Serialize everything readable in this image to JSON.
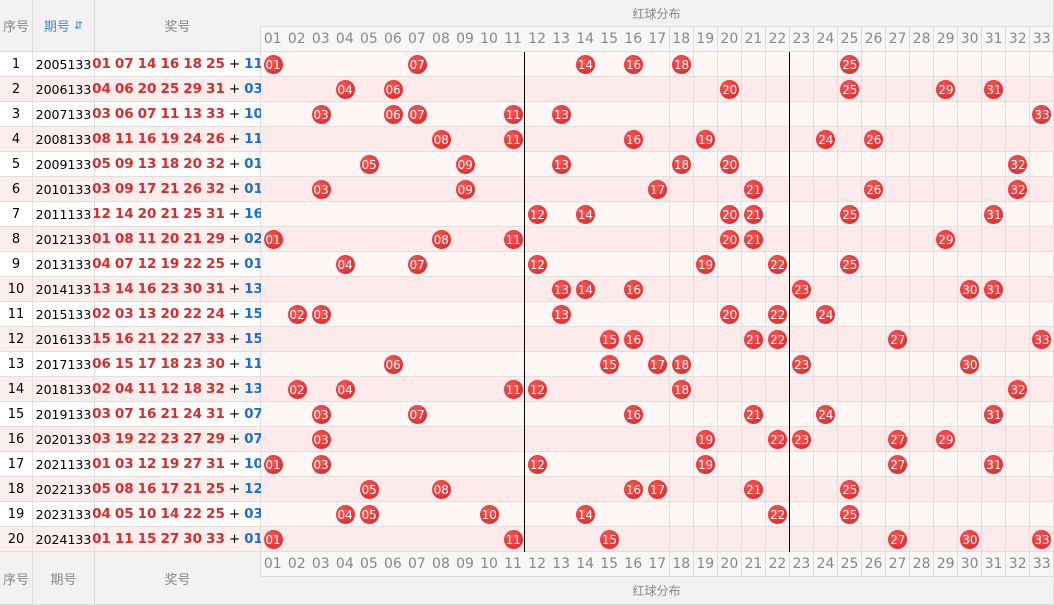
{
  "header": {
    "index": "序号",
    "period": "期号",
    "prize": "奖号",
    "distribution": "红球分布",
    "columns": [
      "01",
      "02",
      "03",
      "04",
      "05",
      "06",
      "07",
      "08",
      "09",
      "10",
      "11",
      "12",
      "13",
      "14",
      "15",
      "16",
      "17",
      "18",
      "19",
      "20",
      "21",
      "22",
      "23",
      "24",
      "25",
      "26",
      "27",
      "28",
      "29",
      "30",
      "31",
      "32",
      "33"
    ]
  },
  "table": {
    "plus": "+",
    "rows": [
      {
        "index": "1",
        "period": "2005133",
        "reds": [
          "01",
          "07",
          "14",
          "16",
          "18",
          "25"
        ],
        "blue": "11"
      },
      {
        "index": "2",
        "period": "2006133",
        "reds": [
          "04",
          "06",
          "20",
          "25",
          "29",
          "31"
        ],
        "blue": "03"
      },
      {
        "index": "3",
        "period": "2007133",
        "reds": [
          "03",
          "06",
          "07",
          "11",
          "13",
          "33"
        ],
        "blue": "10"
      },
      {
        "index": "4",
        "period": "2008133",
        "reds": [
          "08",
          "11",
          "16",
          "19",
          "24",
          "26"
        ],
        "blue": "11"
      },
      {
        "index": "5",
        "period": "2009133",
        "reds": [
          "05",
          "09",
          "13",
          "18",
          "20",
          "32"
        ],
        "blue": "01"
      },
      {
        "index": "6",
        "period": "2010133",
        "reds": [
          "03",
          "09",
          "17",
          "21",
          "26",
          "32"
        ],
        "blue": "01"
      },
      {
        "index": "7",
        "period": "2011133",
        "reds": [
          "12",
          "14",
          "20",
          "21",
          "25",
          "31"
        ],
        "blue": "16"
      },
      {
        "index": "8",
        "period": "2012133",
        "reds": [
          "01",
          "08",
          "11",
          "20",
          "21",
          "29"
        ],
        "blue": "02"
      },
      {
        "index": "9",
        "period": "2013133",
        "reds": [
          "04",
          "07",
          "12",
          "19",
          "22",
          "25"
        ],
        "blue": "01"
      },
      {
        "index": "10",
        "period": "2014133",
        "reds": [
          "13",
          "14",
          "16",
          "23",
          "30",
          "31"
        ],
        "blue": "13"
      },
      {
        "index": "11",
        "period": "2015133",
        "reds": [
          "02",
          "03",
          "13",
          "20",
          "22",
          "24"
        ],
        "blue": "15"
      },
      {
        "index": "12",
        "period": "2016133",
        "reds": [
          "15",
          "16",
          "21",
          "22",
          "27",
          "33"
        ],
        "blue": "15"
      },
      {
        "index": "13",
        "period": "2017133",
        "reds": [
          "06",
          "15",
          "17",
          "18",
          "23",
          "30"
        ],
        "blue": "11"
      },
      {
        "index": "14",
        "period": "2018133",
        "reds": [
          "02",
          "04",
          "11",
          "12",
          "18",
          "32"
        ],
        "blue": "13"
      },
      {
        "index": "15",
        "period": "2019133",
        "reds": [
          "03",
          "07",
          "16",
          "21",
          "24",
          "31"
        ],
        "blue": "07"
      },
      {
        "index": "16",
        "period": "2020133",
        "reds": [
          "03",
          "19",
          "22",
          "23",
          "27",
          "29"
        ],
        "blue": "07"
      },
      {
        "index": "17",
        "period": "2021133",
        "reds": [
          "01",
          "03",
          "12",
          "19",
          "27",
          "31"
        ],
        "blue": "10"
      },
      {
        "index": "18",
        "period": "2022133",
        "reds": [
          "05",
          "08",
          "16",
          "17",
          "21",
          "25"
        ],
        "blue": "12"
      },
      {
        "index": "19",
        "period": "2023133",
        "reds": [
          "04",
          "05",
          "10",
          "14",
          "22",
          "25"
        ],
        "blue": "03"
      },
      {
        "index": "20",
        "period": "2024133",
        "reds": [
          "01",
          "11",
          "15",
          "27",
          "30",
          "33"
        ],
        "blue": "01"
      }
    ]
  }
}
